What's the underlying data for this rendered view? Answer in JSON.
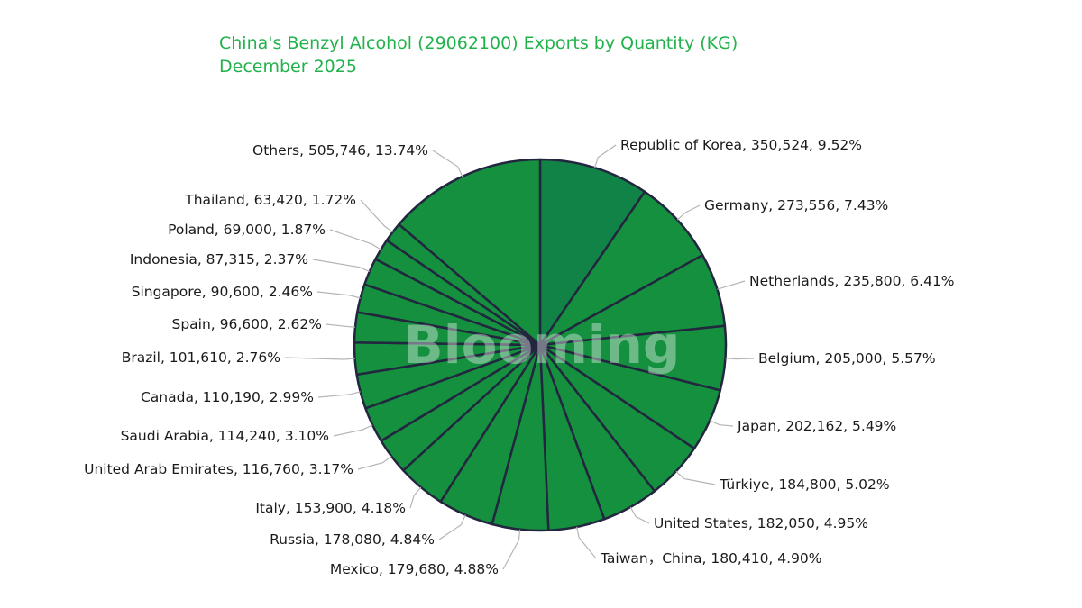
{
  "chart_data": {
    "type": "pie",
    "title": "China's Benzyl Alcohol (29062100) Exports by Quantity (KG)",
    "subtitle": "December 2025",
    "watermark": "Blooming",
    "legend": "none",
    "colors": {
      "title": "#22b24c",
      "slice_fill": "#14903f",
      "first_slice_fill": "#118347",
      "slice_stroke": "#22263f",
      "leader_line": "#b5b5b5",
      "watermark": "#ffffff"
    },
    "slices": [
      {
        "label": "Republic of Korea, 350,524, 9.52%",
        "value": 350524,
        "percent": 9.52
      },
      {
        "label": "Germany, 273,556, 7.43%",
        "value": 273556,
        "percent": 7.43
      },
      {
        "label": "Netherlands, 235,800, 6.41%",
        "value": 235800,
        "percent": 6.41
      },
      {
        "label": "Belgium, 205,000, 5.57%",
        "value": 205000,
        "percent": 5.57
      },
      {
        "label": "Japan, 202,162, 5.49%",
        "value": 202162,
        "percent": 5.49
      },
      {
        "label": "Türkiye, 184,800, 5.02%",
        "value": 184800,
        "percent": 5.02
      },
      {
        "label": "United States, 182,050, 4.95%",
        "value": 182050,
        "percent": 4.95
      },
      {
        "label": "Taiwan，China, 180,410, 4.90%",
        "value": 180410,
        "percent": 4.9
      },
      {
        "label": "Mexico, 179,680, 4.88%",
        "value": 179680,
        "percent": 4.88
      },
      {
        "label": "Russia, 178,080, 4.84%",
        "value": 178080,
        "percent": 4.84
      },
      {
        "label": "Italy, 153,900, 4.18%",
        "value": 153900,
        "percent": 4.18
      },
      {
        "label": "United Arab Emirates, 116,760, 3.17%",
        "value": 116760,
        "percent": 3.17
      },
      {
        "label": "Saudi Arabia, 114,240, 3.10%",
        "value": 114240,
        "percent": 3.1
      },
      {
        "label": "Canada, 110,190, 2.99%",
        "value": 110190,
        "percent": 2.99
      },
      {
        "label": "Brazil, 101,610, 2.76%",
        "value": 101610,
        "percent": 2.76
      },
      {
        "label": "Spain, 96,600, 2.62%",
        "value": 96600,
        "percent": 2.62
      },
      {
        "label": "Singapore, 90,600, 2.46%",
        "value": 90600,
        "percent": 2.46
      },
      {
        "label": "Indonesia, 87,315, 2.37%",
        "value": 87315,
        "percent": 2.37
      },
      {
        "label": "Poland, 69,000, 1.87%",
        "value": 69000,
        "percent": 1.87
      },
      {
        "label": "Thailand, 63,420, 1.72%",
        "value": 63420,
        "percent": 1.72
      },
      {
        "label": "Others, 505,746, 13.74%",
        "value": 505746,
        "percent": 13.74
      }
    ]
  }
}
